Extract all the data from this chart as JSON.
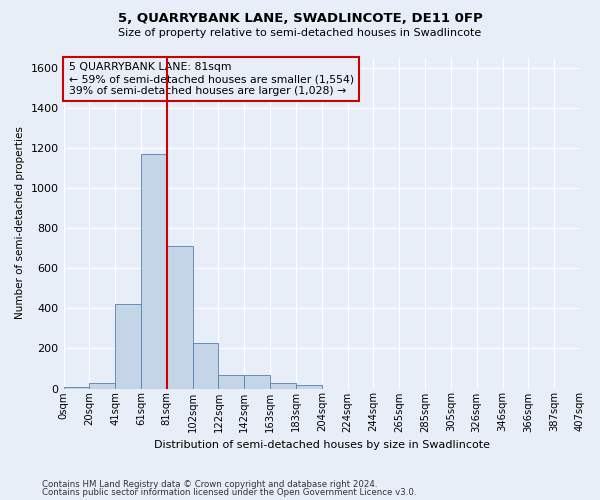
{
  "title": "5, QUARRYBANK LANE, SWADLINCOTE, DE11 0FP",
  "subtitle": "Size of property relative to semi-detached houses in Swadlincote",
  "xlabel": "Distribution of semi-detached houses by size in Swadlincote",
  "ylabel": "Number of semi-detached properties",
  "footnote1": "Contains HM Land Registry data © Crown copyright and database right 2024.",
  "footnote2": "Contains public sector information licensed under the Open Government Licence v3.0.",
  "bin_labels": [
    "0sqm",
    "20sqm",
    "41sqm",
    "61sqm",
    "81sqm",
    "102sqm",
    "122sqm",
    "142sqm",
    "163sqm",
    "183sqm",
    "204sqm",
    "224sqm",
    "244sqm",
    "265sqm",
    "285sqm",
    "305sqm",
    "326sqm",
    "346sqm",
    "366sqm",
    "387sqm",
    "407sqm"
  ],
  "bar_values": [
    10,
    28,
    420,
    1170,
    710,
    228,
    68,
    65,
    28,
    18,
    0,
    0,
    0,
    0,
    0,
    0,
    0,
    0,
    0,
    0
  ],
  "ylim": [
    0,
    1650
  ],
  "yticks": [
    0,
    200,
    400,
    600,
    800,
    1000,
    1200,
    1400,
    1600
  ],
  "redline_bin_index": 4,
  "annotation_text": "5 QUARRYBANK LANE: 81sqm\n← 59% of semi-detached houses are smaller (1,554)\n39% of semi-detached houses are larger (1,028) →",
  "bar_color": "#c5d5e8",
  "bar_edge_color": "#5580b0",
  "redline_color": "#cc0000",
  "annotation_box_edge": "#cc0000",
  "bg_color": "#e8eef8",
  "grid_color": "#ffffff"
}
